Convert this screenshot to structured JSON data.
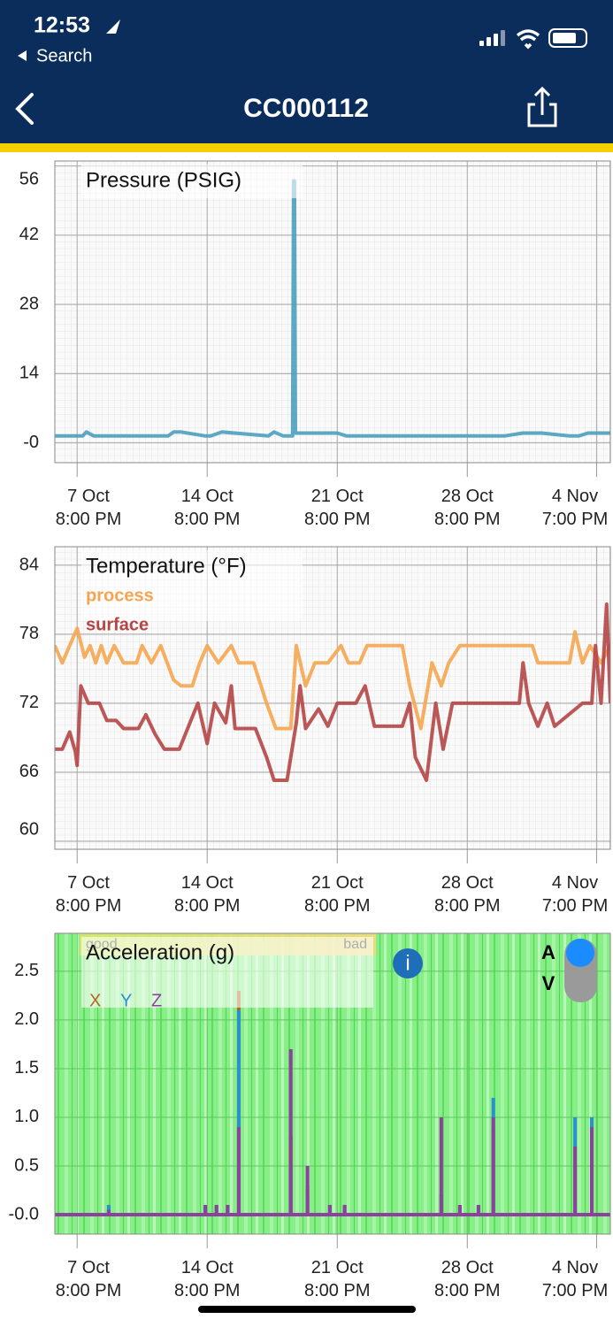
{
  "status_bar": {
    "time": "12:53",
    "back": "Search"
  },
  "nav": {
    "title": "CC000112"
  },
  "chart_data": [
    {
      "type": "line",
      "title": "Pressure (PSIG)",
      "color": "#4b9fbd",
      "grid": true,
      "x": [
        -1.2,
        -1.0,
        -0.8,
        0.3,
        0.5,
        0.9,
        2,
        3,
        4.9,
        5.2,
        5.6,
        6.9,
        7.2,
        7.8,
        10.3,
        10.6,
        11.1,
        11.5,
        11.6,
        11.65,
        11.7,
        11.75,
        12,
        14,
        14.5,
        16,
        18.5,
        19,
        20.5,
        21.5,
        22,
        23,
        24,
        25,
        26.5,
        27,
        27.5,
        28.5,
        28.7
      ],
      "values": [
        1.4,
        1.4,
        1.4,
        1.4,
        2.2,
        1.4,
        1.4,
        1.4,
        1.4,
        2.2,
        2.2,
        1.4,
        1.4,
        2.2,
        1.4,
        2.2,
        1.4,
        1.4,
        1.4,
        53,
        53,
        2,
        2,
        2,
        1.4,
        1.4,
        1.4,
        1.4,
        1.4,
        1.4,
        1.4,
        1.4,
        2,
        2,
        1.4,
        1.4,
        2,
        2,
        2
      ],
      "xlim": [
        -1.2,
        28.7
      ],
      "xticks": [
        {
          "value": 0,
          "label": "7 Oct\n8:00 PM"
        },
        {
          "value": 7,
          "label": "14 Oct\n8:00 PM"
        },
        {
          "value": 14,
          "label": "21 Oct\n8:00 PM"
        },
        {
          "value": 21,
          "label": "28 Oct\n8:00 PM"
        },
        {
          "value": 27.96,
          "label": "4 Nov\n7:00 PM"
        }
      ],
      "ylim": [
        -4,
        57
      ],
      "yticks": [
        {
          "value": 0,
          "label": "-0"
        },
        14,
        28,
        42,
        56
      ]
    },
    {
      "type": "line",
      "title": "Temperature (°F)",
      "grid": true,
      "legend": "upper left",
      "series": [
        {
          "name": "process",
          "color": "#f5a54f",
          "x": [
            -1.2,
            -0.8,
            -0.4,
            0,
            0.4,
            0.7,
            1.0,
            1.3,
            1.6,
            2,
            2.5,
            3.2,
            3.5,
            4,
            4.5,
            5.2,
            5.6,
            6.2,
            6.6,
            7,
            7.6,
            8.3,
            8.7,
            9.5,
            10.2,
            10.7,
            11.5,
            11.8,
            12.3,
            12.8,
            13.5,
            14.2,
            14.6,
            15.2,
            15.6,
            17.5,
            17.9,
            18.5,
            19.1,
            19.6,
            20,
            20.6,
            24.5,
            24.8,
            26.5,
            26.8,
            27.2,
            27.6,
            28.2,
            28.7
          ],
          "values": [
            77,
            75.5,
            77,
            78.5,
            76,
            77,
            75.5,
            77,
            75.5,
            77,
            75.5,
            75.5,
            77,
            75.5,
            77,
            74,
            73.5,
            73.5,
            75.5,
            77,
            75.5,
            77,
            75.5,
            75.5,
            72,
            69.8,
            69.8,
            77,
            73.5,
            75.5,
            75.5,
            77,
            75.5,
            75.5,
            77,
            77,
            73.5,
            69.8,
            75.5,
            73.5,
            75.5,
            77,
            77,
            75.5,
            75.5,
            78.2,
            75.5,
            77,
            75.5,
            77
          ]
        },
        {
          "name": "surface",
          "color": "#b54545",
          "x": [
            -1.2,
            -0.8,
            -0.4,
            -0.1,
            0,
            0.2,
            0.6,
            1.2,
            1.6,
            2.1,
            2.5,
            3.3,
            3.7,
            4.2,
            4.7,
            5.5,
            6,
            6.5,
            7,
            7.4,
            8.0,
            8.3,
            8.5,
            9.6,
            10.2,
            10.6,
            11.3,
            11.8,
            12.0,
            12.3,
            13,
            13.5,
            14,
            15,
            15.5,
            16,
            17.5,
            17.9,
            18.2,
            18.8,
            19.3,
            19.7,
            20.2,
            23.8,
            24.0,
            24.3,
            24.8,
            25.3,
            25.7,
            27.2,
            27.7,
            27.9,
            28.2,
            28.5,
            28.7
          ],
          "values": [
            68,
            68,
            69.5,
            67.8,
            66.6,
            73.5,
            72,
            72,
            70.5,
            70.5,
            69.8,
            69.8,
            71,
            69.3,
            68,
            68,
            70,
            72,
            68.5,
            72,
            70.3,
            73.5,
            69.8,
            69.8,
            67.3,
            65.3,
            65.3,
            70.3,
            73.5,
            69.8,
            71.5,
            70,
            72,
            72,
            73.5,
            70,
            70,
            72,
            67.3,
            65.3,
            72,
            68,
            72,
            72,
            75.5,
            72,
            70,
            72,
            70,
            72,
            72,
            77,
            72,
            80.6,
            72
          ]
        }
      ],
      "xlim": [
        -1.2,
        28.7
      ],
      "xticks": [
        {
          "value": 0,
          "label": "7 Oct\n8:00 PM"
        },
        {
          "value": 7,
          "label": "14 Oct\n8:00 PM"
        },
        {
          "value": 14,
          "label": "21 Oct\n8:00 PM"
        },
        {
          "value": 21,
          "label": "28 Oct\n8:00 PM"
        },
        {
          "value": 27.96,
          "label": "4 Nov\n7:00 PM"
        }
      ],
      "ylim": [
        59.3,
        85.6
      ],
      "yticks": [
        60,
        66,
        72,
        78,
        84
      ]
    },
    {
      "type": "bar",
      "title": "Acceleration (g)",
      "grid": true,
      "legend": "upper left",
      "band_labels": [
        "good",
        "bad"
      ],
      "info_button": "i",
      "toggle": [
        "A",
        "V"
      ],
      "x": [
        1.7,
        6.9,
        7.5,
        8.1,
        8.7,
        11.5,
        12.4,
        13.6,
        14.4,
        19.6,
        20.6,
        21.6,
        22.4,
        26.8,
        27.7
      ],
      "series": [
        {
          "name": "X",
          "color": "#b5651d",
          "values": [
            0,
            0.05,
            0.05,
            0,
            2.3,
            0.8,
            0.3,
            0,
            0,
            0.2,
            0,
            0,
            0.9,
            0.5,
            0.8
          ]
        },
        {
          "name": "Y",
          "color": "#2a8fd4",
          "values": [
            0.1,
            0.1,
            0.1,
            0.1,
            2.1,
            0.5,
            0.2,
            0.1,
            0.1,
            0.2,
            0.1,
            0.1,
            1.2,
            1.0,
            1.0
          ]
        },
        {
          "name": "Z",
          "color": "#8e3fa0",
          "values": [
            0.05,
            0.1,
            0.1,
            0.1,
            0.9,
            1.7,
            0.5,
            0.1,
            0.1,
            1.0,
            0.1,
            0.1,
            1.0,
            0.7,
            0.9
          ]
        }
      ],
      "xlim": [
        -1.2,
        28.7
      ],
      "xticks": [
        {
          "value": 0,
          "label": "7 Oct\n8:00 PM"
        },
        {
          "value": 7,
          "label": "14 Oct\n8:00 PM"
        },
        {
          "value": 14,
          "label": "21 Oct\n8:00 PM"
        },
        {
          "value": 21,
          "label": "28 Oct\n8:00 PM"
        },
        {
          "value": 27.96,
          "label": "4 Nov\n7:00 PM"
        }
      ],
      "ylim": [
        -0.2,
        2.89
      ],
      "yticks": [
        {
          "value": 0,
          "label": "-0.0"
        },
        0.5,
        {
          "value": 1,
          "label": "1.0"
        },
        1.5,
        {
          "value": 2,
          "label": "2.0"
        },
        2.5
      ]
    }
  ]
}
